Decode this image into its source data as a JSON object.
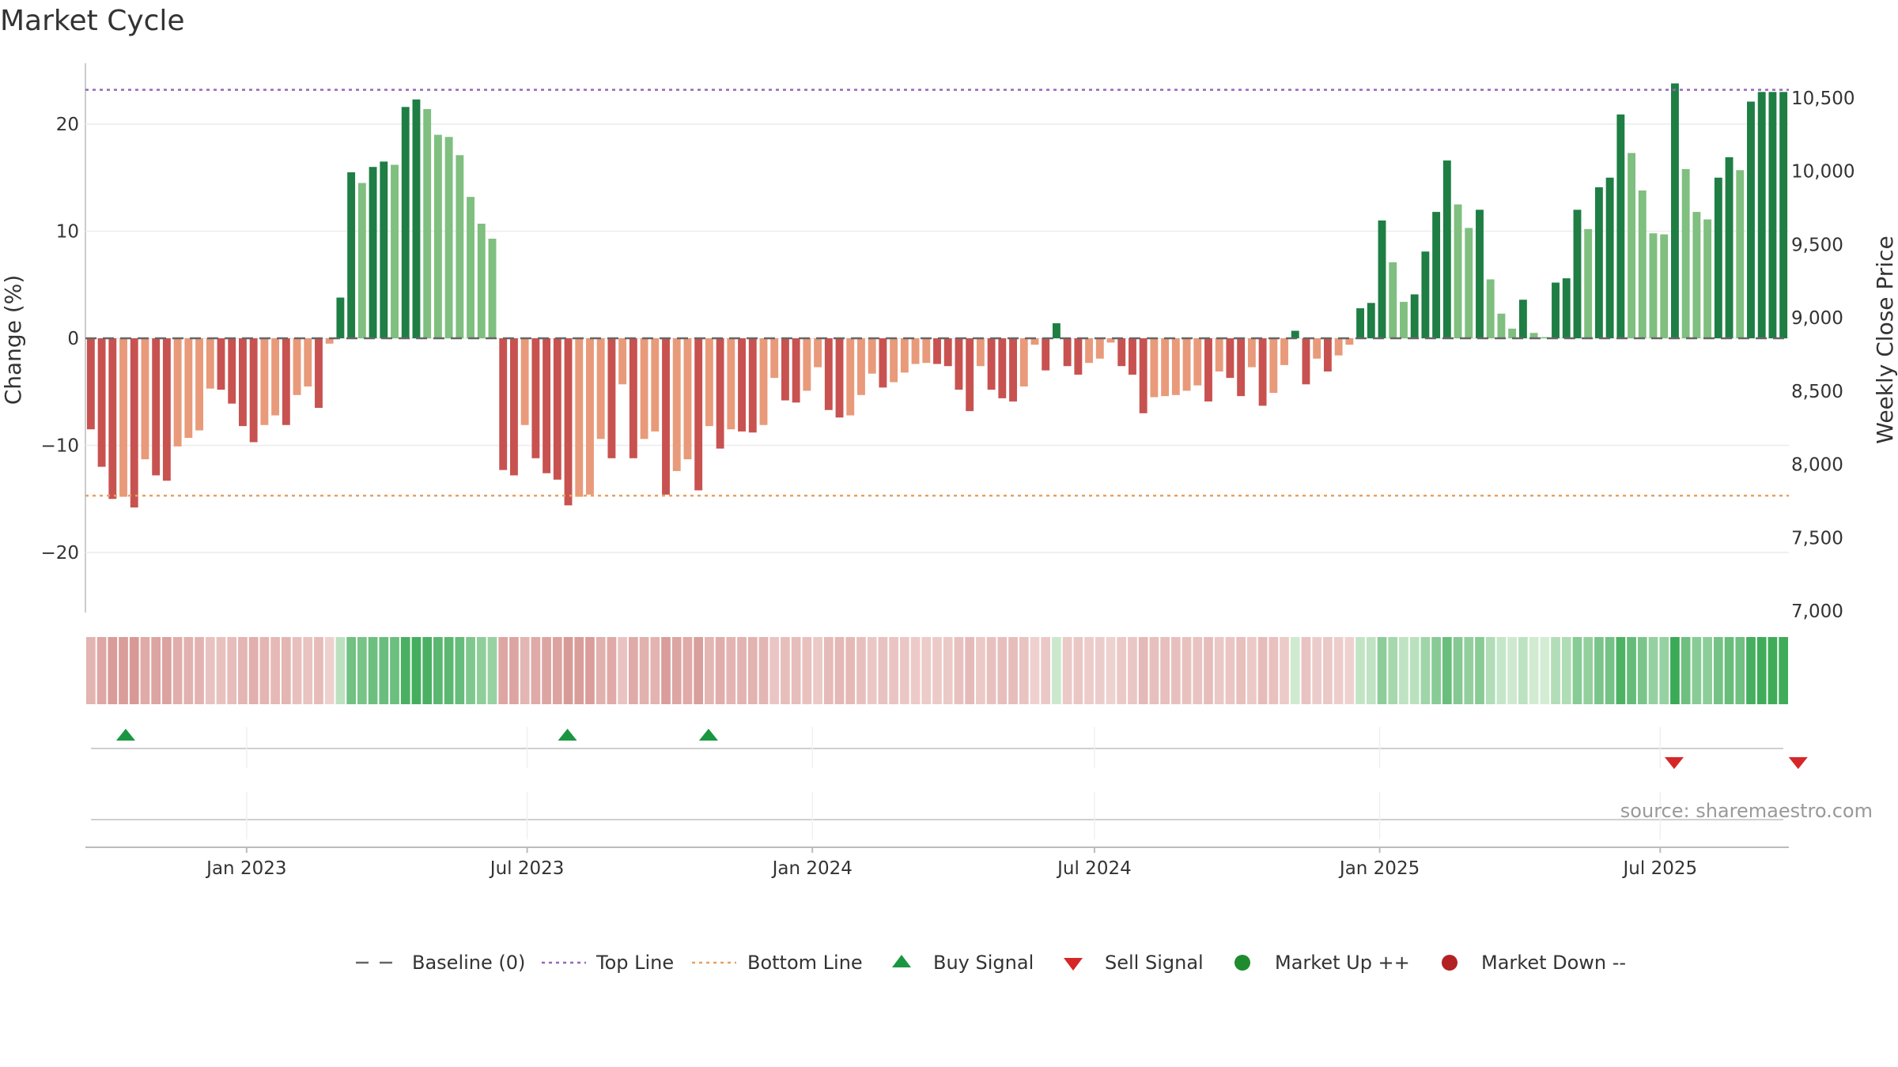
{
  "chart_data": {
    "type": "bar",
    "title": "Market Cycle",
    "ylabel_left": "Change (%)",
    "ylabel_right": "Weekly Close Price",
    "source": "source: sharemaestro.com",
    "left_axis": {
      "range": [
        -26,
        26
      ],
      "ticks": [
        -20,
        -10,
        0,
        10,
        20
      ],
      "tick_labels": [
        "−20",
        "−10",
        "0",
        "10",
        "20"
      ]
    },
    "right_axis": {
      "range": [
        7000,
        10750
      ],
      "ticks": [
        7000,
        7500,
        8000,
        8500,
        9000,
        9500,
        10000,
        10500
      ],
      "tick_labels": [
        "7,000",
        "7,500",
        "8,000",
        "8,500",
        "9,000",
        "9,500",
        "10,000",
        "10,500"
      ]
    },
    "x_axis": {
      "start": "2022-09-19",
      "end": "2025-09-22",
      "ticks": [
        "2023-01-01",
        "2023-07-01",
        "2024-01-01",
        "2024-07-01",
        "2025-01-01",
        "2025-07-01"
      ],
      "tick_labels": [
        "Jan 2023",
        "Jul 2023",
        "Jan 2024",
        "Jul 2024",
        "Jan 2025",
        "Jul 2025"
      ]
    },
    "top_line": 23.2,
    "bottom_line": -14.7,
    "grid": true,
    "weekly_change": [
      -8.5,
      -12,
      -15,
      -14.8,
      -15.8,
      -11.3,
      -12.8,
      -13.3,
      -10.1,
      -9.3,
      -8.6,
      -4.7,
      -4.8,
      -6.1,
      -8.2,
      -9.7,
      -8.1,
      -7.2,
      -8.1,
      -5.3,
      -4.5,
      -6.5,
      -0.5,
      3.8,
      15.5,
      14.5,
      16,
      16.5,
      16.2,
      21.6,
      22.3,
      21.4,
      19,
      18.8,
      17.1,
      13.2,
      10.7,
      9.3,
      -12.3,
      -12.8,
      -8.1,
      -11.2,
      -12.6,
      -13.2,
      -15.6,
      -14.8,
      -14.6,
      -9.4,
      -11.2,
      -4.3,
      -11.2,
      -9.4,
      -8.7,
      -14.6,
      -12.4,
      -11.3,
      -14.2,
      -8.2,
      -10.3,
      -8.5,
      -8.7,
      -8.8,
      -8.1,
      -3.7,
      -5.8,
      -6,
      -4.9,
      -2.7,
      -6.7,
      -7.4,
      -7.2,
      -5.3,
      -3.3,
      -4.6,
      -4.1,
      -3.2,
      -2.4,
      -2.3,
      -2.4,
      -2.6,
      -4.8,
      -6.8,
      -2.6,
      -4.8,
      -5.6,
      -5.9,
      -4.5,
      -0.6,
      -3,
      1.4,
      -2.6,
      -3.4,
      -2.3,
      -1.9,
      -0.4,
      -2.6,
      -3.4,
      -7,
      -5.5,
      -5.4,
      -5.3,
      -4.9,
      -4.4,
      -5.9,
      -3.1,
      -3.7,
      -5.4,
      -2.7,
      -6.3,
      -5.1,
      -2.5,
      0.7,
      -4.3,
      -1.9,
      -3.1,
      -1.6,
      -0.6,
      2.8,
      3.3,
      11,
      7.1,
      3.4,
      4.1,
      8.1,
      11.8,
      16.6,
      12.5,
      10.3,
      12,
      5.5,
      2.3,
      0.9,
      3.6,
      0.5,
      0,
      5.2,
      5.6,
      12,
      10.2,
      14.1,
      15,
      20.9,
      17.3,
      13.8,
      9.8,
      9.7,
      23.8,
      15.8,
      11.8,
      11.1,
      15,
      16.9,
      15.7,
      22.1,
      23,
      23,
      23
    ],
    "strength_colors_up": [
      "#1e7e44",
      "#7fbf7f"
    ],
    "strength_colors_down": [
      "#c85250",
      "#e89a7a"
    ],
    "buy_signals": [
      "2022-10-15",
      "2023-07-27",
      "2023-10-26"
    ],
    "sell_signals": [
      "2025-07-10",
      "2025-09-28"
    ],
    "legend": [
      {
        "label": "Baseline (0)",
        "symbol": "dash",
        "color": "#666666"
      },
      {
        "label": "Top Line",
        "symbol": "dot",
        "color": "#9467bd"
      },
      {
        "label": "Bottom Line",
        "symbol": "dot",
        "color": "#e8a060"
      },
      {
        "label": "Buy Signal",
        "symbol": "triangle-up",
        "color": "#1a9641"
      },
      {
        "label": "Sell Signal",
        "symbol": "triangle-down",
        "color": "#d62728"
      },
      {
        "label": "Market Up ++",
        "symbol": "circle",
        "color": "#1e8c2e"
      },
      {
        "label": "Market Down --",
        "symbol": "circle",
        "color": "#b22222"
      }
    ]
  }
}
